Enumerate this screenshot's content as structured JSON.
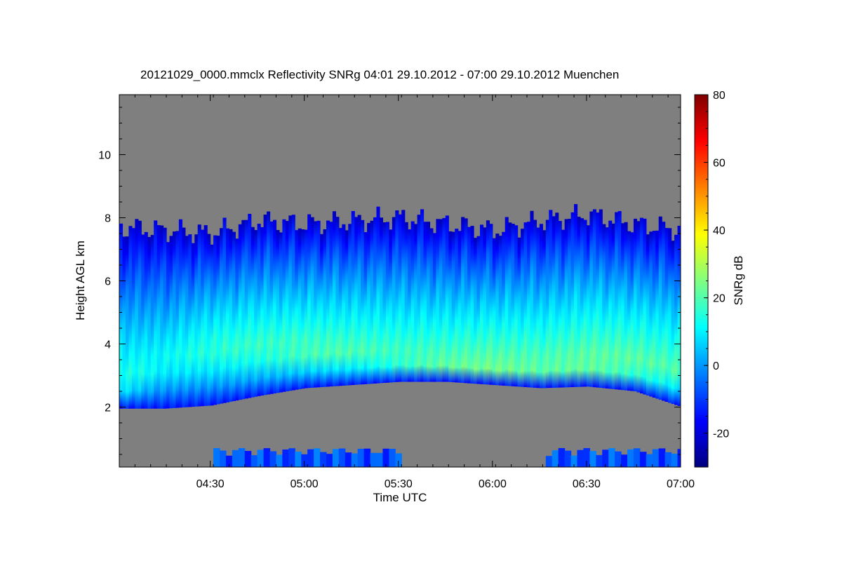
{
  "chart_data": {
    "type": "heatmap",
    "title": "20121029_0000.mmclx Reflectivity SNRg   04:01 29.10.2012 - 07:00 29.10.2012 Muenchen",
    "xlabel": "Time UTC",
    "ylabel": "Height AGL km",
    "colorbar_label": "SNRg dB",
    "x_range": [
      "04:01",
      "07:00"
    ],
    "ylim": [
      0.1,
      11.9
    ],
    "zlim": [
      -30,
      80
    ],
    "x_ticks": [
      "04:30",
      "05:00",
      "05:30",
      "06:00",
      "06:30",
      "07:00"
    ],
    "y_ticks": [
      "2",
      "4",
      "6",
      "8",
      "10"
    ],
    "colorbar_ticks": [
      "-20",
      "0",
      "20",
      "40",
      "60",
      "80"
    ],
    "no_data_color": "#7f7f7f",
    "colormap": [
      "#000080",
      "#0000ff",
      "#0080ff",
      "#00ffff",
      "#80ff80",
      "#ffff00",
      "#ff8000",
      "#ff0000",
      "#800000"
    ],
    "time_axis": [
      "04:01",
      "04:15",
      "04:30",
      "04:45",
      "05:00",
      "05:15",
      "05:30",
      "05:45",
      "06:00",
      "06:15",
      "06:30",
      "06:45",
      "07:00"
    ],
    "echo_top_km": [
      7.7,
      7.6,
      7.5,
      7.9,
      7.8,
      7.9,
      8.0,
      7.8,
      7.6,
      7.9,
      8.1,
      7.8,
      7.6
    ],
    "cloud_base_km": [
      1.95,
      1.95,
      2.05,
      2.35,
      2.6,
      2.7,
      2.8,
      2.8,
      2.7,
      2.6,
      2.65,
      2.5,
      2.0
    ],
    "peak_layer_height_km": [
      2.8,
      3.5,
      3.9,
      3.9,
      3.8,
      3.7,
      3.5,
      3.3,
      3.2,
      3.2,
      3.3,
      3.3,
      3.1
    ],
    "peak_snr_db": [
      15,
      12,
      16,
      18,
      20,
      20,
      20,
      22,
      24,
      22,
      24,
      23,
      20
    ]
  }
}
